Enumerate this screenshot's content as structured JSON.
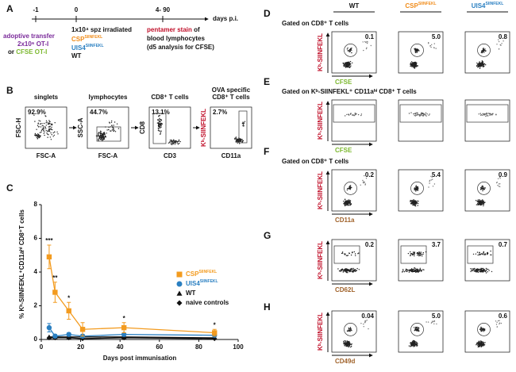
{
  "panel_labels": [
    "A",
    "B",
    "C",
    "D",
    "E",
    "F",
    "G",
    "H"
  ],
  "timeline": {
    "ticks": [
      "-1",
      "0",
      "4- 90"
    ],
    "unit": "days p.i.",
    "transfer": [
      "adoptive transfer",
      "2x10⁶ OT-I",
      "or ",
      "CFSE OT-I"
    ],
    "immunisation": [
      "1x10⁴ spz irradiated",
      "CSP",
      "SIINFEKL",
      "UIS4",
      "SIINFEKL",
      "WT"
    ],
    "analysis": [
      "pentamer stain",
      " of",
      "blood lymphocytes",
      "(d5 analysis for CFSE)"
    ]
  },
  "gating": [
    {
      "title": [
        "singlets"
      ],
      "pct": "92.9%",
      "y": "FSC-H",
      "x": "FSC-A"
    },
    {
      "title": [
        "lymphocytes"
      ],
      "pct": "44.7%",
      "y": "SSC-A",
      "x": "FSC-A"
    },
    {
      "title": [
        "CD8⁺ T cells"
      ],
      "pct": "13.1%",
      "y": "CD8",
      "x": "CD3"
    },
    {
      "title": [
        "OVA specific",
        "CD8⁺ T cells"
      ],
      "pct": "2.7%",
      "y": "Kᵇ-SIINFEKL",
      "x": "CD11a"
    }
  ],
  "chart_data": {
    "type": "line",
    "xlabel": "Days post immunisation",
    "ylabel": "% Kᵇ-SIINFEKL⁺CD11aʰⁱ CD8⁺T cells",
    "x": [
      4,
      7,
      14,
      21,
      42,
      88
    ],
    "xlim": [
      0,
      100
    ],
    "xticks": [
      0,
      20,
      40,
      60,
      80,
      100
    ],
    "ylim": [
      0,
      8
    ],
    "yticks": [
      0,
      2,
      4,
      6,
      8
    ],
    "series": [
      {
        "name": "CSP",
        "name_sup": "SIINFEKL",
        "color": "#f39b1f",
        "marker": "square",
        "values": [
          4.9,
          2.8,
          1.7,
          0.6,
          0.7,
          0.4
        ],
        "errors": [
          0.7,
          0.6,
          0.5,
          0.4,
          0.3,
          0.2
        ]
      },
      {
        "name": "UIS4",
        "name_sup": "SIINFEKL",
        "color": "#2a7fc1",
        "marker": "circle",
        "values": [
          0.7,
          0.2,
          0.3,
          0.2,
          0.3,
          0.25
        ],
        "errors": [
          0.25,
          0.1,
          0.1,
          0.1,
          0.1,
          0.1
        ]
      },
      {
        "name": "WT",
        "color": "#111111",
        "marker": "triangle",
        "values": [
          0.15,
          0.15,
          0.15,
          0.15,
          0.15,
          0.1
        ]
      },
      {
        "name": "naive controls",
        "color": "#111111",
        "marker": "diamond",
        "values": [
          0.1,
          0.1,
          0.1,
          0.05,
          0.1,
          0.05
        ]
      }
    ],
    "annotations": [
      {
        "x": 4,
        "text": "***"
      },
      {
        "x": 7,
        "text": "**"
      },
      {
        "x": 14,
        "text": "*"
      },
      {
        "x": 42,
        "text": "*"
      },
      {
        "x": 88,
        "text": "*"
      }
    ]
  },
  "flow": {
    "columns": [
      {
        "name": "WT"
      },
      {
        "name": "CSP",
        "sup": "SIINFEKL"
      },
      {
        "name": "UIS4",
        "sup": "SIINFEKL"
      }
    ],
    "y_label": "Kᵇ-SIINFEKL",
    "rows": [
      {
        "gate": "Gated on CD8⁺ T cells",
        "x_label": "CFSE",
        "pcts": [
          "0.1",
          "5.0",
          "0.8"
        ]
      },
      {
        "gate": "Gated on Kᵇ-SIINFEKL⁺ CD11aʰⁱ CD8⁺ T cells",
        "x_label": "CFSE",
        "pcts": []
      },
      {
        "gate": "Gated on CD8⁺ T cells",
        "x_label": "CD11a",
        "pcts": [
          "0.2",
          "5.4",
          "0.9"
        ]
      },
      {
        "x_label": "CD62L",
        "pcts": [
          "0.2",
          "3.7",
          "0.7"
        ]
      },
      {
        "x_label": "CD49d",
        "pcts": [
          "0.04",
          "5.0",
          "0.6"
        ]
      }
    ]
  }
}
